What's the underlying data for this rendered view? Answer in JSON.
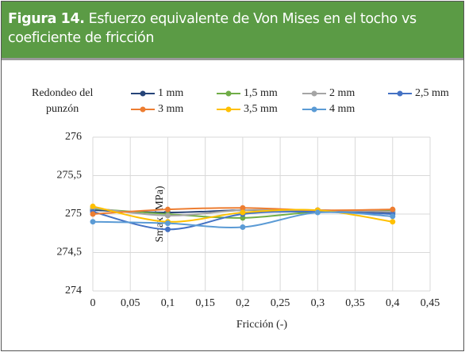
{
  "chart_data": {
    "type": "line",
    "figure_label": "Figura 14.",
    "title": "Esfuerzo equivalente de Von Mises en el tocho vs coeficiente de fricción",
    "legend_title": "Redondeo del punzón",
    "x_label": "Fricción (-)",
    "y_label": "Smax (MPa)",
    "x": [
      0,
      0.1,
      0.2,
      0.3,
      0.4
    ],
    "series": [
      {
        "name": "1 mm",
        "color": "#264478",
        "values": [
          275.05,
          275.02,
          275.05,
          275.05,
          275.02
        ]
      },
      {
        "name": "1,5 mm",
        "color": "#70ad47",
        "values": [
          275.07,
          275.0,
          274.95,
          275.03,
          275.05
        ]
      },
      {
        "name": "2 mm",
        "color": "#a5a5a5",
        "values": [
          275.08,
          274.98,
          275.05,
          275.05,
          275.03
        ]
      },
      {
        "name": "2,5 mm",
        "color": "#4472c4",
        "values": [
          275.03,
          274.8,
          275.0,
          275.03,
          275.0
        ]
      },
      {
        "name": "3 mm",
        "color": "#ed7d31",
        "values": [
          275.0,
          275.06,
          275.08,
          275.05,
          275.06
        ]
      },
      {
        "name": "3,5 mm",
        "color": "#ffc000",
        "values": [
          275.1,
          274.9,
          275.02,
          275.05,
          274.9
        ]
      },
      {
        "name": "4 mm",
        "color": "#5b9bd5",
        "values": [
          274.9,
          274.88,
          274.83,
          275.02,
          274.97
        ]
      }
    ],
    "xlim": [
      0,
      0.45
    ],
    "xticks": [
      0,
      {
        "value": 0.05,
        "label": "0,05"
      },
      {
        "value": 0.1,
        "label": "0,1"
      },
      {
        "value": 0.15,
        "label": "0,15"
      },
      {
        "value": 0.2,
        "label": "0,2"
      },
      {
        "value": 0.25,
        "label": "0,25"
      },
      {
        "value": 0.3,
        "label": "0,3"
      },
      {
        "value": 0.35,
        "label": "0,35"
      },
      {
        "value": 0.4,
        "label": "0,4"
      },
      {
        "value": 0.45,
        "label": "0,45"
      }
    ],
    "ylim": [
      274,
      276
    ],
    "yticks": [
      274,
      {
        "value": 274.5,
        "label": "274,5"
      },
      275,
      {
        "value": 275.5,
        "label": "275,5"
      },
      276
    ],
    "grid": true
  }
}
